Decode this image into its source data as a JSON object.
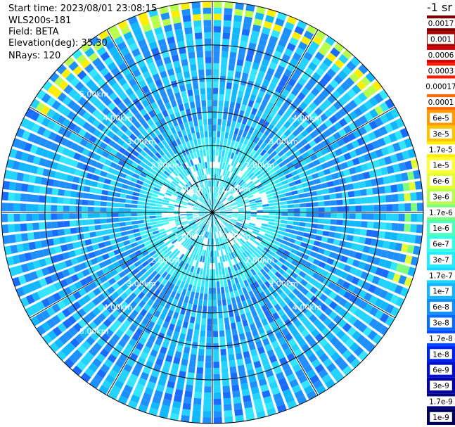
{
  "header": {
    "start_time": "Start time: 2023/08/01 23:08:15",
    "instrument": "WLS200s-181",
    "field": "Field: BETA",
    "elevation": "Elevation(deg): 35.30",
    "nrays": "NRays: 120"
  },
  "colorbar": {
    "unit": "-1 sr",
    "labels": [
      "0.0017",
      "0.001",
      "0.0006",
      "0.0003",
      "0.00017",
      "0.0001",
      "6e-5",
      "3e-5",
      "1.7e-5",
      "1e-5",
      "6e-6",
      "3e-6",
      "1.7e-6",
      "1e-6",
      "6e-7",
      "3e-7",
      "1.7e-7",
      "1e-7",
      "6e-8",
      "3e-8",
      "1.7e-8",
      "1e-8",
      "6e-9",
      "3e-9",
      "1.7e-9",
      "1e-9"
    ],
    "colors": [
      "#7a0000",
      "#a80000",
      "#d60000",
      "#ff1a00",
      "#ffffff",
      "#ff6a00",
      "#ff9a00",
      "#ffc400",
      "#ffee00",
      "#ffff33",
      "#e6ff33",
      "#b8ff4d",
      "#7dff7d",
      "#4dffb8",
      "#33ffe6",
      "#22eeff",
      "#19d4ff",
      "#14b4ff",
      "#1090ff",
      "#0a6cff",
      "#0448ff",
      "#0022ee",
      "#0010c8",
      "#0000a6",
      "#00007e",
      "#000058"
    ]
  },
  "chart_data": {
    "type": "heatmap",
    "projection": "polar-ppi",
    "field": "BETA",
    "elevation_deg": 35.3,
    "nrays": 120,
    "range_rings_km": [
      1,
      2,
      3,
      4,
      5
    ],
    "ring_labels": [
      "1.00km",
      "2.00km",
      "3.00km",
      "4.00km",
      "5.00km"
    ],
    "max_range_km": 6.3,
    "radial_lines_deg": [
      0,
      30,
      60,
      90,
      120,
      150,
      180,
      210,
      240,
      270,
      300,
      330
    ],
    "typical_value_near": "1e-6 to 3e-6 (cyan)",
    "typical_value_far": "3e-7 to 1e-6 (blue-cyan)",
    "high_values_edge": "1.7e-5 to 1e-5 (yellow/green) along north-west to north-east rim and east rim"
  }
}
